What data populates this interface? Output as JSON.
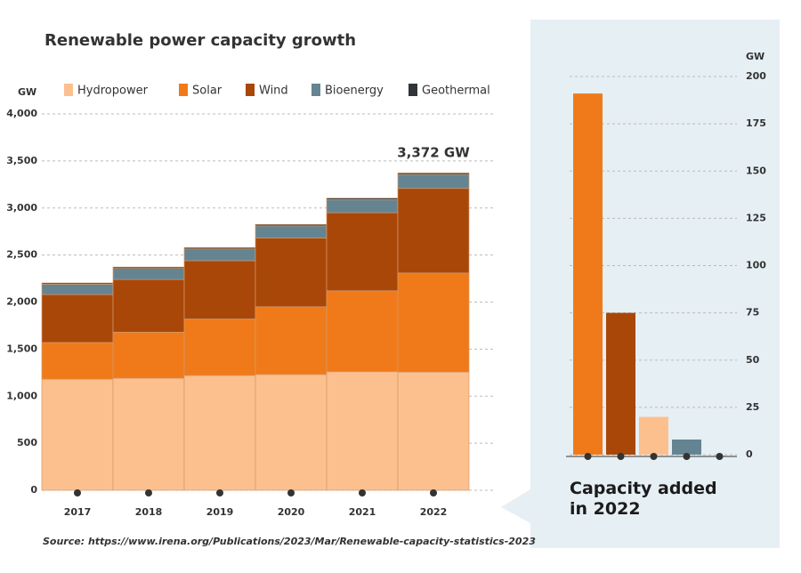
{
  "chart_data": [
    {
      "type": "stacked-bar",
      "title": "Renewable power capacity growth",
      "y_label": "GW",
      "categories": [
        "2017",
        "2018",
        "2019",
        "2020",
        "2021",
        "2022"
      ],
      "series": [
        {
          "name": "Hydropower",
          "color": "#fcc08f",
          "values": [
            1180,
            1190,
            1220,
            1230,
            1260,
            1256
          ]
        },
        {
          "name": "Solar",
          "color": "#f07a1a",
          "values": [
            390,
            490,
            600,
            720,
            860,
            1053
          ]
        },
        {
          "name": "Wind",
          "color": "#a94709",
          "values": [
            510,
            560,
            620,
            730,
            830,
            899
          ]
        },
        {
          "name": "Bioenergy",
          "color": "#648492",
          "values": [
            110,
            118,
            125,
            130,
            140,
            149
          ]
        },
        {
          "name": "Geothermal",
          "color": "#2f3538",
          "values": [
            13,
            14,
            14,
            15,
            15,
            15
          ]
        }
      ],
      "ylim": [
        0,
        4000
      ],
      "yticks": [
        0,
        500,
        {
          "value": 1000,
          "label": "1,000"
        },
        {
          "value": 1500,
          "label": "1,500"
        },
        {
          "value": 2000,
          "label": "2,000"
        },
        {
          "value": 2500,
          "label": "2,500"
        },
        {
          "value": 3000,
          "label": "3,000"
        },
        {
          "value": 3500,
          "label": "3,500"
        },
        {
          "value": 4000,
          "label": "4,000"
        }
      ],
      "grid": true,
      "annotation": "3,372 GW"
    },
    {
      "type": "bar",
      "title": "Capacity added in 2022",
      "y_label": "GW",
      "categories": [
        null,
        null,
        null,
        null,
        null
      ],
      "values": [
        191,
        75,
        20,
        8,
        0
      ],
      "colors": [
        "#f07a1a",
        "#a94709",
        "#fcc08f",
        "#648492",
        "#2f3538"
      ],
      "ylim": [
        0,
        200
      ],
      "yticks": [
        0,
        25,
        50,
        75,
        100,
        125,
        150,
        175,
        200
      ],
      "grid": true
    }
  ],
  "source": "Source: https://www.irena.org/Publications/2023/Mar/Renewable-capacity-statistics-2023"
}
